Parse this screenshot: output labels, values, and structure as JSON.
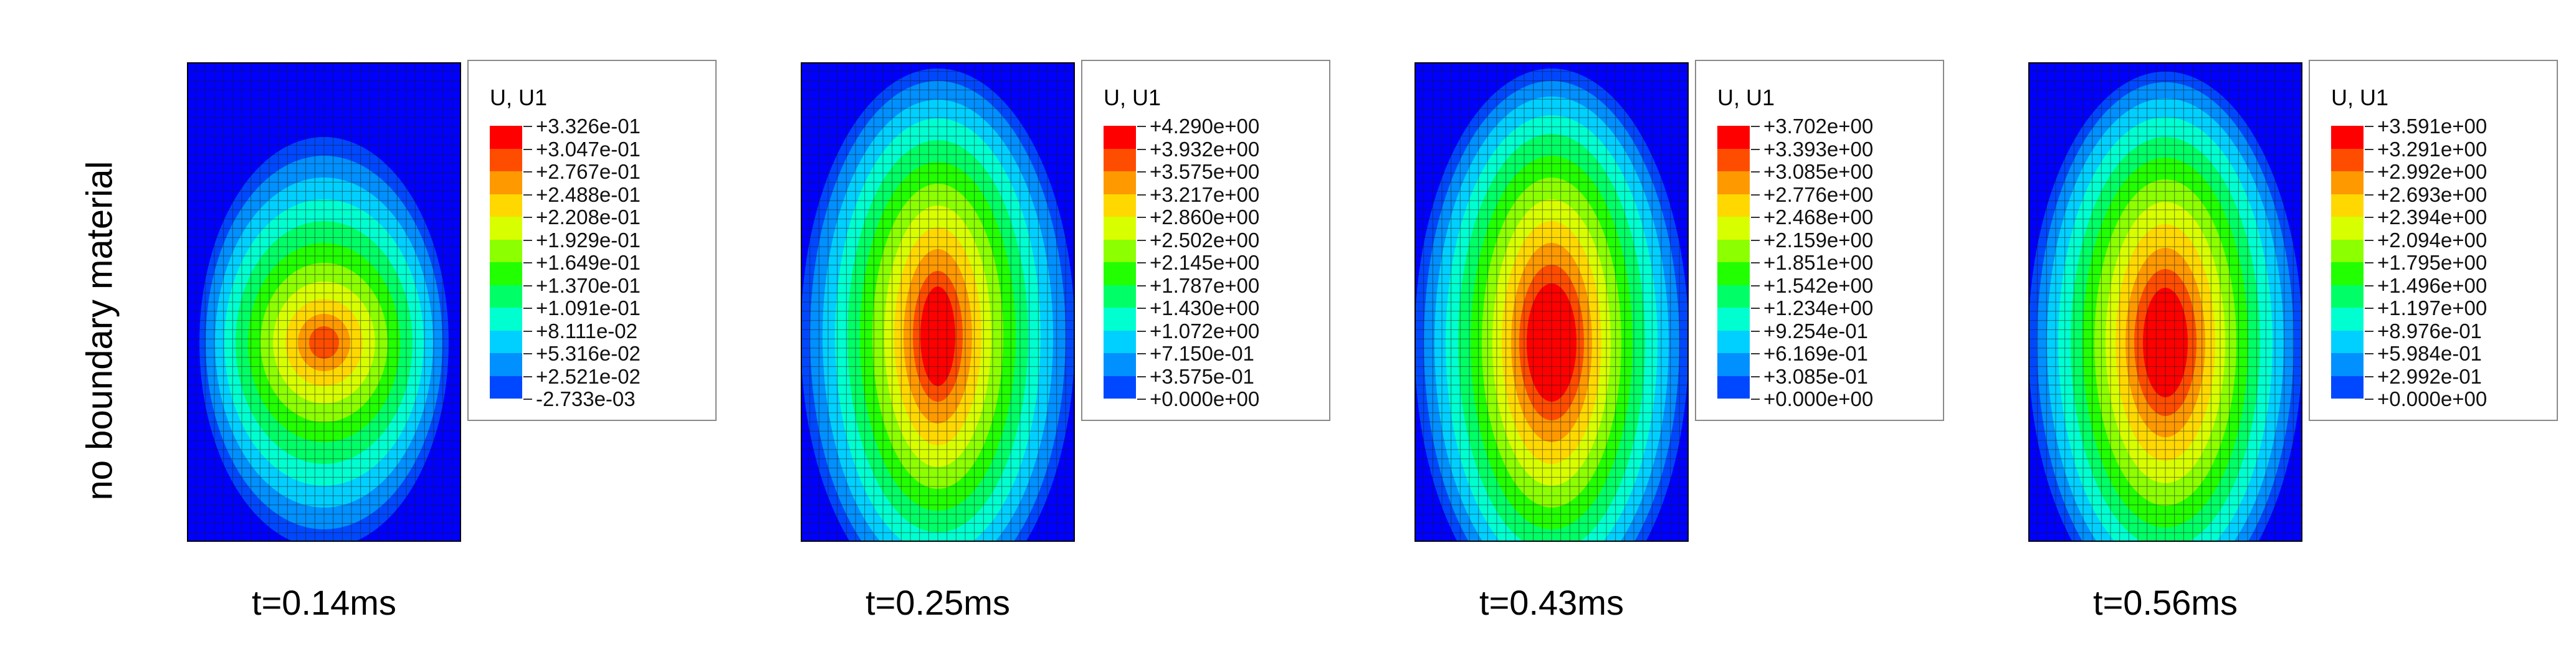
{
  "row_label": "no boundary material",
  "legend_colors": [
    "#ff0000",
    "#ff4d00",
    "#ff9900",
    "#ffd800",
    "#d8ff00",
    "#8cff00",
    "#22ff00",
    "#00ff66",
    "#00ffd0",
    "#00d0ff",
    "#0090ff",
    "#0048ff",
    "#0000ff"
  ],
  "panels": [
    {
      "time": "t=0.14ms",
      "legend_title": "U, U1",
      "legend_values": [
        "+3.326e-01",
        "+3.047e-01",
        "+2.767e-01",
        "+2.488e-01",
        "+2.208e-01",
        "+1.929e-01",
        "+1.649e-01",
        "+1.370e-01",
        "+1.091e-01",
        "+8.111e-02",
        "+5.316e-02",
        "+2.521e-02",
        "-2.733e-03"
      ]
    },
    {
      "time": "t=0.25ms",
      "legend_title": "U, U1",
      "legend_values": [
        "+4.290e+00",
        "+3.932e+00",
        "+3.575e+00",
        "+3.217e+00",
        "+2.860e+00",
        "+2.502e+00",
        "+2.145e+00",
        "+1.787e+00",
        "+1.430e+00",
        "+1.072e+00",
        "+7.150e-01",
        "+3.575e-01",
        "+0.000e+00"
      ]
    },
    {
      "time": "t=0.43ms",
      "legend_title": "U, U1",
      "legend_values": [
        "+3.702e+00",
        "+3.393e+00",
        "+3.085e+00",
        "+2.776e+00",
        "+2.468e+00",
        "+2.159e+00",
        "+1.851e+00",
        "+1.542e+00",
        "+1.234e+00",
        "+9.254e-01",
        "+6.169e-01",
        "+3.085e-01",
        "+0.000e+00"
      ]
    },
    {
      "time": "t=0.56ms",
      "legend_title": "U, U1",
      "legend_values": [
        "+3.591e+00",
        "+3.291e+00",
        "+2.992e+00",
        "+2.693e+00",
        "+2.394e+00",
        "+2.094e+00",
        "+1.795e+00",
        "+1.496e+00",
        "+1.197e+00",
        "+8.976e-01",
        "+5.984e-01",
        "+2.992e-01",
        "+0.000e+00"
      ]
    }
  ]
}
